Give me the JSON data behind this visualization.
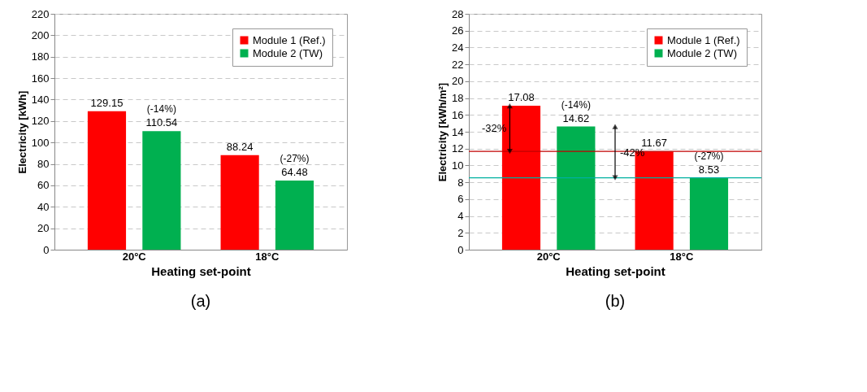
{
  "chart_data": [
    {
      "type": "bar",
      "xlabel": "Heating set-point",
      "ylabel": "Electricity [kWh]",
      "categories": [
        "20°C",
        "18°C"
      ],
      "series": [
        {
          "name": "Module 1 (Ref.)",
          "color": "#ff0000",
          "values": [
            129.15,
            88.24
          ]
        },
        {
          "name": "Module 2 (TW)",
          "color": "#00b050",
          "values": [
            110.54,
            64.48
          ]
        }
      ],
      "ylim": [
        0,
        220
      ],
      "yticks": [
        0,
        20,
        40,
        60,
        80,
        100,
        120,
        140,
        160,
        180,
        200,
        220
      ],
      "grid": "y",
      "legend": "top right",
      "data_labels": true,
      "annotations": [
        "(-14%)",
        "(-27%)",
        "(a)"
      ]
    },
    {
      "type": "bar",
      "xlabel": "Heating set-point",
      "ylabel": "Electricity [kWh/m²]",
      "categories": [
        "20°C",
        "18°C"
      ],
      "series": [
        {
          "name": "Module 1 (Ref.)",
          "color": "#ff0000",
          "values": [
            17.08,
            11.67
          ]
        },
        {
          "name": "Module 2 (TW)",
          "color": "#00b050",
          "values": [
            14.62,
            8.53
          ]
        }
      ],
      "ylim": [
        0,
        28
      ],
      "yticks": [
        0,
        2,
        4,
        6,
        8,
        10,
        12,
        14,
        16,
        18,
        20,
        22,
        24,
        26,
        28
      ],
      "grid": "y",
      "legend": "top right",
      "data_labels": true,
      "ref_lines": [
        {
          "axis": "y",
          "value": 11.67,
          "color": "#c00000"
        },
        {
          "axis": "y",
          "value": 8.53,
          "color": "#00b0a0"
        }
      ],
      "annotations": [
        "(-14%)",
        "(-27%)",
        "-32%",
        {
          "text": "-42%",
          "y": 11.5
        },
        "(b)"
      ]
    }
  ]
}
